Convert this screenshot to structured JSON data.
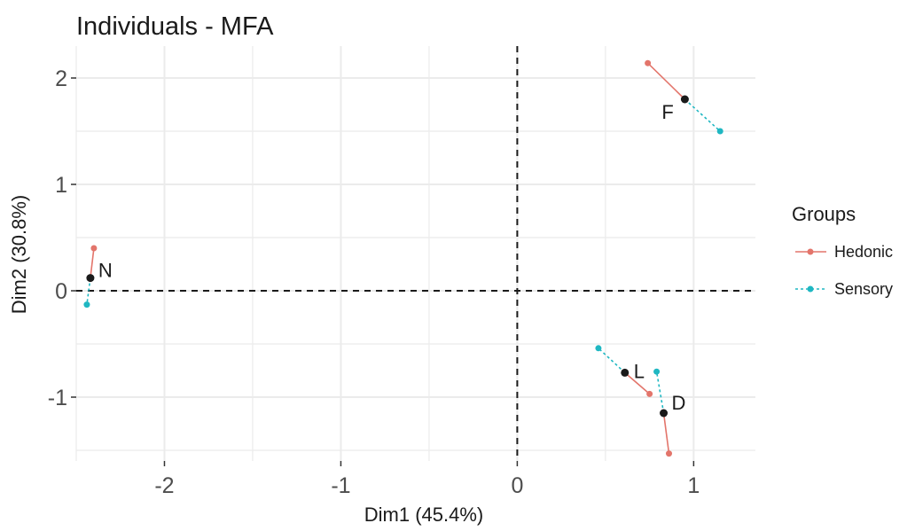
{
  "chart_data": {
    "type": "scatter",
    "title": "Individuals - MFA",
    "xlabel": "Dim1 (45.4%)",
    "ylabel": "Dim2 (30.8%)",
    "xlim": [
      -2.5,
      1.35
    ],
    "ylim": [
      -1.6,
      2.3
    ],
    "x_ticks": [
      -2,
      -1,
      0,
      1
    ],
    "x_tick_labels": [
      "-2",
      "-1",
      "0",
      "1"
    ],
    "y_ticks": [
      -1,
      0,
      1,
      2
    ],
    "y_tick_labels": [
      "-1",
      "0",
      "1",
      "2"
    ],
    "grid": true,
    "reference_lines": {
      "x": 0,
      "y": 0,
      "style": "dashed"
    },
    "legend": {
      "title": "Groups",
      "placement": "right",
      "entries": [
        {
          "name": "Hedonic",
          "color": "#e3756b",
          "line_style": "solid"
        },
        {
          "name": "Sensory",
          "color": "#1fb7c2",
          "line_style": "dotted"
        }
      ]
    },
    "individuals": [
      {
        "label": "F",
        "x": 0.95,
        "y": 1.8,
        "partial": {
          "Hedonic": {
            "x": 0.74,
            "y": 2.14
          },
          "Sensory": {
            "x": 1.15,
            "y": 1.5
          }
        }
      },
      {
        "label": "N",
        "x": -2.42,
        "y": 0.12,
        "partial": {
          "Hedonic": {
            "x": -2.4,
            "y": 0.4
          },
          "Sensory": {
            "x": -2.44,
            "y": -0.13
          }
        }
      },
      {
        "label": "L",
        "x": 0.61,
        "y": -0.77,
        "partial": {
          "Hedonic": {
            "x": 0.75,
            "y": -0.97
          },
          "Sensory": {
            "x": 0.46,
            "y": -0.54
          }
        }
      },
      {
        "label": "D",
        "x": 0.83,
        "y": -1.15,
        "partial": {
          "Hedonic": {
            "x": 0.86,
            "y": -1.53
          },
          "Sensory": {
            "x": 0.79,
            "y": -0.76
          }
        }
      }
    ],
    "colors": {
      "individual": "#1a1a1a",
      "grid": "#ebebeb",
      "zero_line": "#1a1a1a"
    }
  }
}
